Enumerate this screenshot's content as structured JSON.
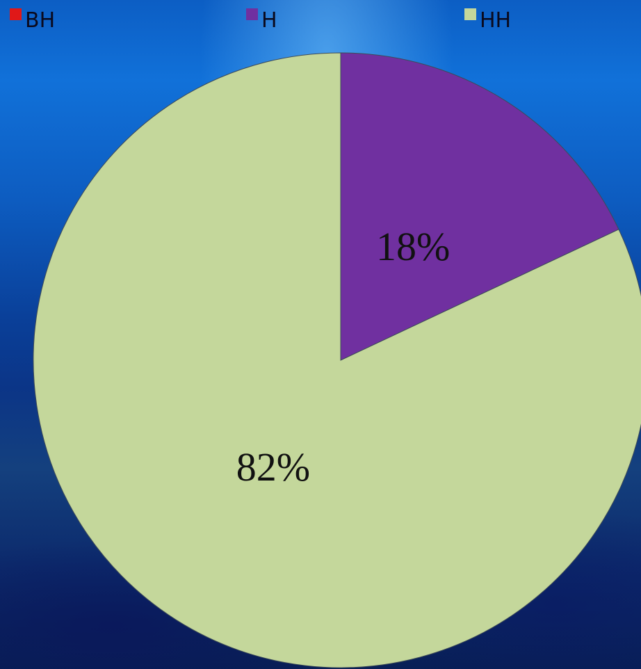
{
  "chart_data": {
    "type": "pie",
    "title": "",
    "legend_position": "top",
    "categories": [
      "ВН",
      "Н",
      "НН"
    ],
    "values": [
      0,
      18,
      82
    ],
    "data_labels": [
      "",
      "18%",
      "82%"
    ],
    "colors": [
      "#e01818",
      "#7030a0",
      "#c4d79b"
    ]
  }
}
